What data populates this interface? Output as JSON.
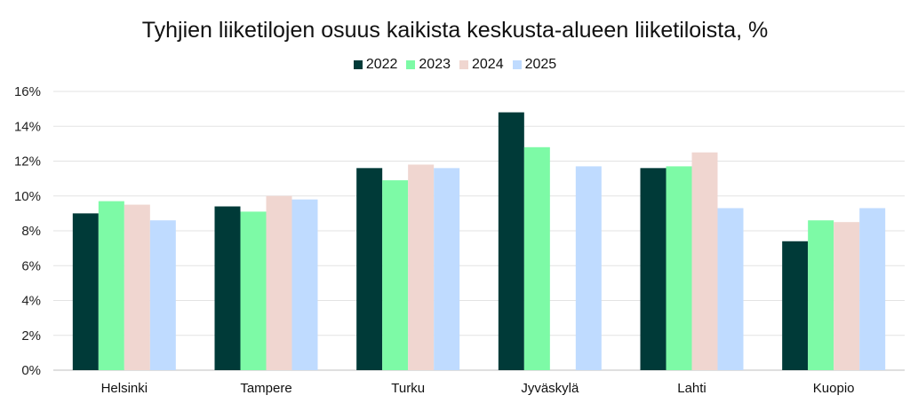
{
  "chart_data": {
    "type": "bar",
    "title": "Tyhjien liiketilojen osuus kaikista keskusta-alueen liiketiloista, %",
    "categories": [
      "Helsinki",
      "Tampere",
      "Turku",
      "Jyväskylä",
      "Lahti",
      "Kuopio"
    ],
    "series": [
      {
        "name": "2022",
        "color": "#003a38",
        "values": [
          9.0,
          9.4,
          11.6,
          14.8,
          11.6,
          7.4
        ]
      },
      {
        "name": "2023",
        "color": "#7dfaa6",
        "values": [
          9.7,
          9.1,
          10.9,
          12.8,
          11.7,
          8.6
        ]
      },
      {
        "name": "2024",
        "color": "#f0d6d0",
        "values": [
          9.5,
          10.0,
          11.8,
          null,
          12.5,
          8.5
        ]
      },
      {
        "name": "2025",
        "color": "#bfdbff",
        "values": [
          8.6,
          9.8,
          11.6,
          11.7,
          9.3,
          9.3
        ]
      }
    ],
    "ylim": [
      0,
      16
    ],
    "yticks": [
      "0%",
      "2%",
      "4%",
      "6%",
      "8%",
      "10%",
      "12%",
      "14%",
      "16%"
    ],
    "xlabel": "",
    "ylabel": "",
    "grid": true,
    "legend_position": "top"
  }
}
